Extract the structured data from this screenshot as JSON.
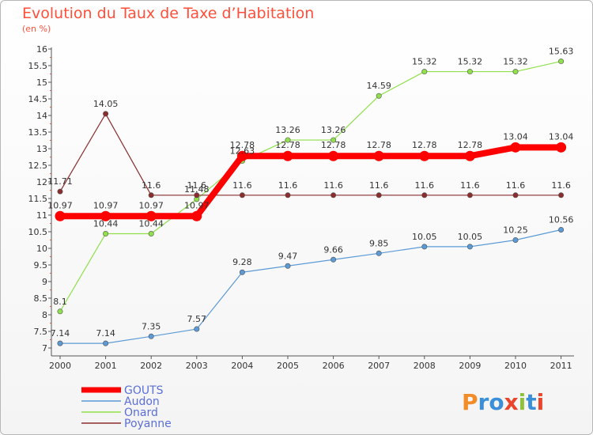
{
  "page": {
    "title": "Evolution du Taux de Taxe d’Habitation",
    "subtitle": "(en %)",
    "logo": "Proxiti"
  },
  "chart_data": {
    "type": "line",
    "title": "Evolution du Taux de Taxe d’Habitation",
    "subtitle": "(en %)",
    "xlabel": "",
    "ylabel": "",
    "x": [
      "2000",
      "2001",
      "2002",
      "2003",
      "2004",
      "2005",
      "2006",
      "2007",
      "2008",
      "2009",
      "2010",
      "2011"
    ],
    "ylim": [
      7,
      16
    ],
    "yticks": [
      "7",
      "7.5",
      "8",
      "8.5",
      "9",
      "9.5",
      "10",
      "10.5",
      "11",
      "11.5",
      "12",
      "12.5",
      "13",
      "13.5",
      "14",
      "14.5",
      "15",
      "15.5",
      "16"
    ],
    "grid": false,
    "legend": "bottom-left",
    "series": [
      {
        "name": "GOUTS",
        "color": "#ff0000",
        "width": 8,
        "values": [
          10.97,
          10.97,
          10.97,
          10.97,
          12.78,
          12.78,
          12.78,
          12.78,
          12.78,
          12.78,
          13.04,
          13.04
        ],
        "labels": [
          "10.97",
          "10.97",
          "10.97",
          "10.97",
          "12.78",
          "12.78",
          "12.78",
          "12.78",
          "12.78",
          "12.78",
          "13.04",
          "13.04"
        ]
      },
      {
        "name": "Audon",
        "color": "#5b9ad6",
        "width": 1.2,
        "values": [
          7.14,
          7.14,
          7.35,
          7.57,
          9.28,
          9.47,
          9.66,
          9.85,
          10.05,
          10.05,
          10.25,
          10.56
        ],
        "labels": [
          "7.14",
          "7.14",
          "7.35",
          "7.57",
          "9.28",
          "9.47",
          "9.66",
          "9.85",
          "10.05",
          "10.05",
          "10.25",
          "10.56"
        ]
      },
      {
        "name": "Onard",
        "color": "#8fe04b",
        "width": 1.2,
        "values": [
          8.1,
          10.44,
          10.44,
          11.48,
          12.63,
          13.26,
          13.26,
          14.59,
          15.32,
          15.32,
          15.32,
          15.63
        ],
        "labels": [
          "8.1",
          "10.44",
          "10.44",
          "11.48",
          "12.63",
          "13.26",
          "13.26",
          "14.59",
          "15.32",
          "15.32",
          "15.32",
          "15.63"
        ]
      },
      {
        "name": "Poyanne",
        "color": "#8b2d2d",
        "width": 1.2,
        "values": [
          11.71,
          14.05,
          11.6,
          11.6,
          11.6,
          11.6,
          11.6,
          11.6,
          11.6,
          11.6,
          11.6,
          11.6
        ],
        "labels": [
          "11.71",
          "14.05",
          "11.6",
          "11.6",
          "11.6",
          "11.6",
          "11.6",
          "11.6",
          "11.6",
          "11.6",
          "11.6",
          "11.6"
        ]
      }
    ]
  },
  "colors": {
    "title": "#ff4f3a",
    "legend_text": "#5b6fd6"
  }
}
